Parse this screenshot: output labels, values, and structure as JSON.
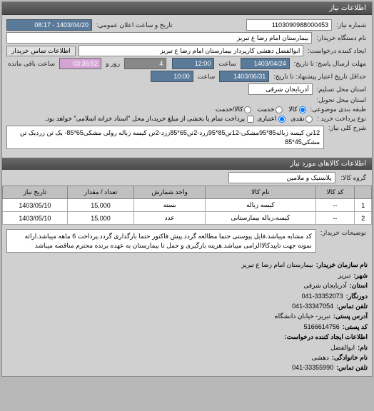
{
  "panel_title": "اطلاعات نیاز",
  "form": {
    "request_no_label": "شماره نیاز:",
    "request_no": "1103090988000453",
    "announce_label": "تاریخ و ساعت اعلان عمومی:",
    "announce_value": "1403/04/20 - 08:17",
    "device_label": "نام دستگاه خریدار:",
    "device_value": "بیمارستان امام رضا  ع   تبریز",
    "creator_label": "ایجاد کننده درخواست:",
    "creator_value": "ابوالفضل دهشی کارپرداز بیمارستان امام رضا  ع  تبریز",
    "contact_btn": "اطلاعات تماس خریدار",
    "deadline_label": "مهلت ارسال پاسخ: تا تاریخ:",
    "deadline_date": "1403/04/24",
    "deadline_time_label": "ساعت",
    "deadline_time": "12:00",
    "remain_days": "4",
    "remain_days_label": "روز و",
    "remain_time": "03:35:52",
    "remain_suffix": "ساعت باقی مانده",
    "validity_label": "حداقل تاریخ اعتبار پیشنهاد: تا تاریخ:",
    "validity_date": "1403/06/31",
    "validity_time_label": "ساعت",
    "validity_time": "10:00",
    "province_label": "استان محل تسلیم:",
    "province_value": "آذربایجان شرقی",
    "delivery_label": "استان محل تحویل:",
    "pack_label": "طبقه بندی موضوعی:",
    "radio_goods": "کالا",
    "radio_service": "خدمت",
    "radio_both": "کالا/خدمت",
    "pay_label": "نوع پرداخت خرید :",
    "radio_cash": "نقدی",
    "radio_credit": "اعتباری",
    "credit_note": "پرداخت تمام یا بخشی از مبلغ خرید،از محل \"اسناد خزانه اسلامی\" خواهد بود.",
    "desc_label": "شرح کلی نیاز:",
    "desc_text": "12تن کیسه زباله85*95مشکی-12تن85*95زرد-2تن65*85زرد-2تن کیسه زباله رولی مشکی65*85- یک تن زردیک تن مشکی45*85"
  },
  "section2_title": "اطلاعات کالاهای مورد نیاز",
  "category_label": "گروه کالا:",
  "category_value": "پلاستیک و ملامین",
  "table": {
    "headers": [
      "",
      "کد کالا",
      "نام کالا",
      "واحد شمارش",
      "تعداد / مقدار",
      "تاریخ نیاز"
    ],
    "rows": [
      [
        "1",
        "--",
        "کیسه زباله",
        "بسته",
        "15,000",
        "1403/05/10"
      ],
      [
        "2",
        "--",
        "کیسه،زباله بیمارستانی",
        "عدد",
        "15,000",
        "1403/05/10"
      ]
    ]
  },
  "notes_label": "توضیحات خریدار:",
  "notes_text": "کد مشابه میباشد.فایل پیوستی حتما مطالعه گردد.پیش فاکتور حتما بارگذاری گردد.پرداخت 6 ماهه میباشد.ارائه نمونه جهت تاییدکالاالزامی میباشد.هزینه بارگیری و حمل تا بیمارستان به عهده برنده محترم مناقصه میباشد",
  "buyer": {
    "org_label": "نام سازمان خریدار:",
    "org_value": "بیمارستان امام رضا ع تبریز",
    "city_label": "شهر:",
    "city_value": "تبریز",
    "province_label": "استان:",
    "province_value": "آذربایجان شرقی",
    "fax_label": "دورنگار:",
    "fax_value": "041-33352073",
    "phone_label": "تلفن تماس:",
    "phone_value": "041-33347054",
    "addr_label": "آدرس پستی:",
    "addr_value": "تبریز- خیابان دانشگاه",
    "postal_label": "کد پستی:",
    "postal_value": "5166614756",
    "req_creator_label": "اطلاعات ایجاد کننده درخواست:",
    "name_label": "نام:",
    "name_value": "ابوالفضل",
    "lname_label": "نام خانوادگی:",
    "lname_value": "دهشی",
    "contact_label": "تلفن تماس:",
    "contact_value": "041-33355990"
  }
}
